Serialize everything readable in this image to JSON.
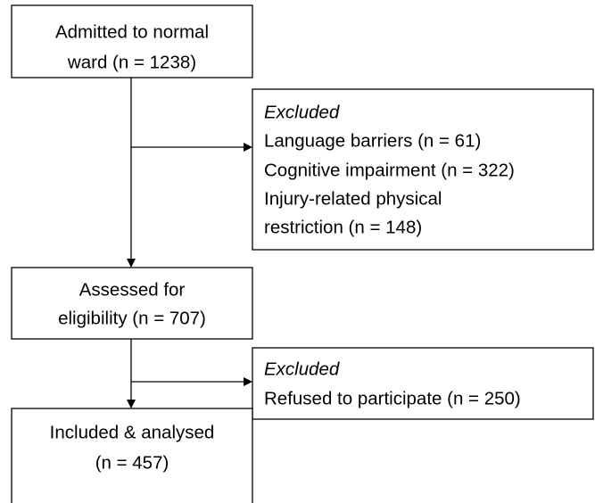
{
  "nodes": [
    {
      "lines": [
        "Admitted to normal",
        "ward (n = 1238)"
      ]
    },
    {
      "heading": "Excluded",
      "lines": [
        "Language barriers (n = 61)",
        "Cognitive impairment (n = 322)",
        "Injury-related physical",
        "restriction (n = 148)"
      ]
    },
    {
      "lines": [
        "Assessed for",
        "eligibility (n = 707)"
      ]
    },
    {
      "heading": "Excluded",
      "lines": [
        "Refused to participate (n = 250)"
      ]
    },
    {
      "lines": [
        "Included & analysed",
        "(n = 457)"
      ]
    }
  ]
}
